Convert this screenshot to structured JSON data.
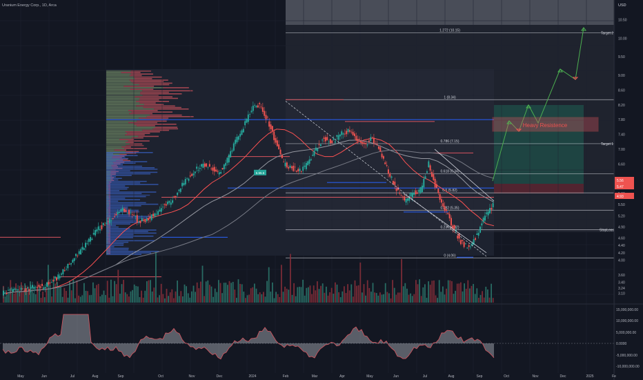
{
  "header": {
    "title": "Uranium Energy Corp., 1D, Arca",
    "currency": "USD"
  },
  "price_axis": {
    "ticks": [
      10.5,
      10.0,
      9.5,
      9.0,
      8.6,
      8.2,
      7.8,
      7.4,
      7.0,
      6.6,
      6.2,
      5.8,
      5.5,
      5.2,
      4.9,
      4.6,
      4.4,
      4.2,
      4.0,
      3.6,
      3.4,
      3.24,
      3.1
    ],
    "tick_labels": [
      "10.50",
      "10.00",
      "9.50",
      "9.00",
      "8.60",
      "8.20",
      "7.80",
      "7.40",
      "7.00",
      "6.60",
      "6.20",
      "5.80",
      "5.50",
      "5.20",
      "4.90",
      "4.60",
      "4.40",
      "4.20",
      "4.00",
      "3.60",
      "3.40",
      "3.24",
      "3.10"
    ],
    "current_price": "5.56",
    "current_price_sub": "5.47",
    "stop_label_price": "4.93"
  },
  "osc_axis": {
    "tick_labels": [
      "15,000,000.00",
      "10,000,000.00",
      "5,000,000.00",
      "0.0000",
      "-5,000,000.00",
      "-10,000,000.00"
    ]
  },
  "time_axis": {
    "labels": [
      "May",
      "Jun",
      "Jul",
      "Aug",
      "Sep",
      "Oct",
      "Nov",
      "Dec",
      "2024",
      "Feb",
      "Mar",
      "Apr",
      "May",
      "Jun",
      "Jul",
      "Aug",
      "Sep",
      "Oct",
      "Nov",
      "Dec",
      "2025",
      "Fe"
    ]
  },
  "fib_levels": [
    {
      "label": "1.272 (10.15)",
      "value": 10.15
    },
    {
      "label": "1 (8.34)",
      "value": 8.34
    },
    {
      "label": "0.786 (7.15)",
      "value": 7.15
    },
    {
      "label": "0.618 (6.34)",
      "value": 6.34
    },
    {
      "label": "0.5 (5.82)",
      "value": 5.82
    },
    {
      "label": "0.382 (5.35)",
      "value": 5.35
    },
    {
      "label": "0.236 (4.82)",
      "value": 4.82
    },
    {
      "label": "0 (4.06)",
      "value": 4.06
    }
  ],
  "annotations": {
    "target2": "Target 2",
    "target1": "Target 1",
    "stoploss": "StopLoss",
    "heavy_resistance": "Heavy Resistence",
    "box_label": "5.95.5"
  },
  "chart_data": {
    "type": "line",
    "title": "Uranium Energy Corp., 1D, Arca",
    "series": [
      {
        "values": [
          3.1,
          3.15,
          3.2,
          3.18,
          3.3,
          3.28,
          3.4,
          3.55,
          3.8,
          4.1,
          4.3,
          4.6,
          4.85,
          5.0,
          5.2,
          5.35,
          5.3,
          5.05,
          5.1,
          5.25,
          5.45,
          5.6,
          5.9,
          6.2,
          6.45,
          6.6,
          6.5,
          6.35,
          6.7,
          7.2,
          7.6,
          8.1,
          8.2,
          7.8,
          7.2,
          6.6,
          6.5,
          6.4,
          6.6,
          7.0,
          7.3,
          7.2,
          7.4,
          7.5,
          7.3,
          7.1,
          7.3,
          6.9,
          6.4,
          5.9,
          5.6,
          5.8,
          5.9,
          6.6,
          5.9,
          5.4,
          4.9,
          4.5,
          4.3,
          4.7,
          5.2,
          5.5
        ]
      }
    ],
    "ylim": [
      3.0,
      10.7
    ],
    "annotations": [
      "Target 2",
      "Target 1",
      "StopLoss",
      "Heavy Resistence"
    ]
  }
}
